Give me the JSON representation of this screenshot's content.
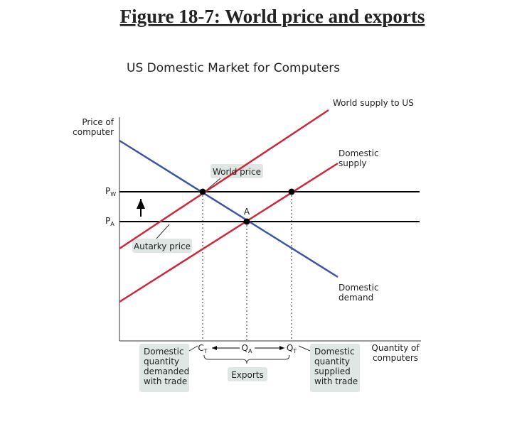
{
  "header": {
    "title": "Figure 18-7: World price and exports",
    "subtitle": "US Domestic Market for Computers"
  },
  "axes": {
    "y_label": [
      "Price of",
      "computer"
    ],
    "x_label": [
      "Quantity of",
      "computers"
    ]
  },
  "curves": {
    "world_supply": "World supply to US",
    "domestic_supply": [
      "Domestic",
      "supply"
    ],
    "domestic_demand": [
      "Domestic",
      "demand"
    ]
  },
  "prices": {
    "world": {
      "main": "P",
      "sub": "W"
    },
    "autarky": {
      "main": "P",
      "sub": "A"
    }
  },
  "point": "A",
  "callouts": {
    "world_price": "World price",
    "autarky_price": "Autarky price"
  },
  "quantities": {
    "ct": {
      "main": "C",
      "sub": "T"
    },
    "qa": {
      "main": "Q",
      "sub": "A"
    },
    "qt": {
      "main": "Q",
      "sub": "T"
    }
  },
  "notes": {
    "demanded": [
      "Domestic",
      "quantity",
      "demanded",
      "with trade"
    ],
    "exports": "Exports",
    "supplied": [
      "Domestic",
      "quantity",
      "supplied",
      "with trade"
    ]
  }
}
